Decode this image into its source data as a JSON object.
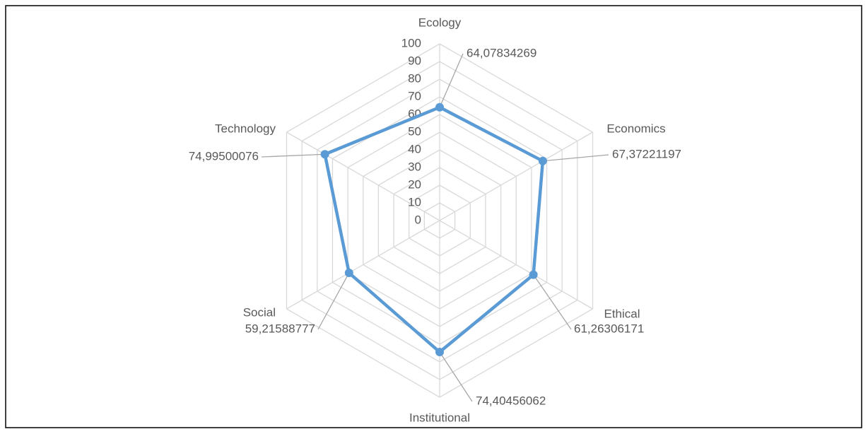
{
  "chart_data": {
    "type": "radar",
    "categories": [
      "Ecology",
      "Economics",
      "Ethical",
      "Institutional",
      "Social",
      "Technology"
    ],
    "values": [
      64.07834269,
      67.37221197,
      61.26306171,
      74.40456062,
      59.21588777,
      74.99500076
    ],
    "value_labels": [
      "64,07834269",
      "67,37221197",
      "61,26306171",
      "74,40456062",
      "59,21588777",
      "74,99500076"
    ],
    "color": "#5b9bd5",
    "rlim": [
      0,
      100
    ],
    "rticks": [
      0,
      10,
      20,
      30,
      40,
      50,
      60,
      70,
      80,
      90,
      100
    ],
    "grid": true
  }
}
